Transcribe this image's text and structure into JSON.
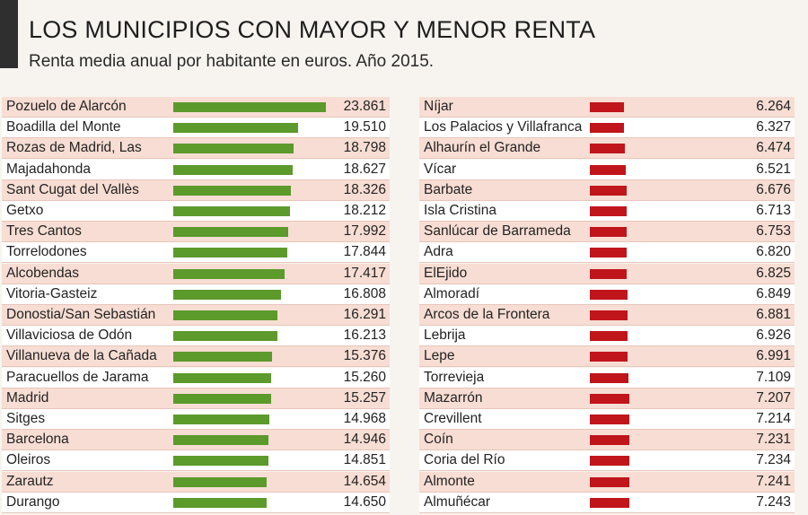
{
  "header": {
    "title": "LOS MUNICIPIOS CON MAYOR Y MENOR RENTA",
    "subtitle": "Renta media anual por habitante en euros. Año 2015."
  },
  "colors": {
    "high": "#5c9a2b",
    "low": "#c0151b",
    "row_shade": "#f7ddd3"
  },
  "chart_data": [
    {
      "type": "bar",
      "orientation": "horizontal",
      "title": "",
      "categories": [
        "Pozuelo de Alarcón",
        "Boadilla del Monte",
        "Rozas de Madrid, Las",
        "Majadahonda",
        "Sant Cugat del Vallès",
        "Getxo",
        "Tres Cantos",
        "Torrelodones",
        "Alcobendas",
        "Vitoria-Gasteiz",
        "Donostia/San Sebastián",
        "Villaviciosa de Odón",
        "Villanueva de la Cañada",
        "Paracuellos de Jarama",
        "Madrid",
        "Sitges",
        "Barcelona",
        "Oleiros",
        "Zarautz",
        "Durango"
      ],
      "values": [
        23861,
        19510,
        18798,
        18627,
        18326,
        18212,
        17992,
        17844,
        17417,
        16808,
        16291,
        16213,
        15376,
        15260,
        15257,
        14968,
        14946,
        14851,
        14654,
        14650
      ],
      "labels": [
        "23.861",
        "19.510",
        "18.798",
        "18.627",
        "18.326",
        "18.212",
        "17.992",
        "17.844",
        "17.417",
        "16.808",
        "16.291",
        "16.213",
        "15.376",
        "15.260",
        "15.257",
        "14.968",
        "14.946",
        "14.851",
        "14.654",
        "14.650"
      ]
    },
    {
      "type": "bar",
      "orientation": "horizontal",
      "title": "",
      "categories": [
        "Níjar",
        "Los Palacios y Villafranca",
        "Alhaurín el Grande",
        "Vícar",
        "Barbate",
        "Isla Cristina",
        "Sanlúcar de Barrameda",
        "Adra",
        "ElEjido",
        "Almoradí",
        "Arcos de la Frontera",
        "Lebrija",
        "Lepe",
        "Torrevieja",
        "Mazarrón",
        "Crevillent",
        "Coín",
        "Coria del Río",
        "Almonte",
        "Almuñécar"
      ],
      "values": [
        6264,
        6327,
        6474,
        6521,
        6676,
        6713,
        6753,
        6820,
        6825,
        6849,
        6881,
        6926,
        6991,
        7109,
        7207,
        7214,
        7231,
        7234,
        7241,
        7243
      ],
      "labels": [
        "6.264",
        "6.327",
        "6.474",
        "6.521",
        "6.676",
        "6.713",
        "6.753",
        "6.820",
        "6.825",
        "6.849",
        "6.881",
        "6.926",
        "6.991",
        "7.109",
        "7.207",
        "7.214",
        "7.231",
        "7.234",
        "7.241",
        "7.243"
      ]
    }
  ]
}
